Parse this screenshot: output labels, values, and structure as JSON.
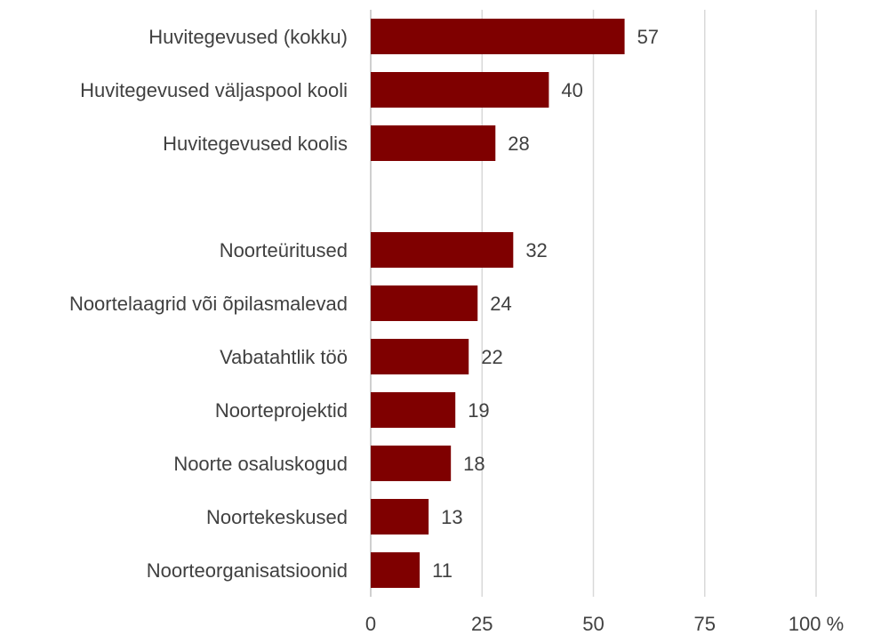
{
  "chart_data": {
    "type": "bar",
    "orientation": "horizontal",
    "categories": [
      "Huvitegevused (kokku)",
      "Huvitegevused väljaspool kooli",
      "Huvitegevused koolis",
      null,
      "Noorteüritused",
      "Noortelaagrid või õpilasmalevad",
      "Vabatahtlik töö",
      "Noorteprojektid",
      "Noorte osaluskogud",
      "Noortekeskused",
      "Noorteorganisatsioonid"
    ],
    "values": [
      57,
      40,
      28,
      null,
      32,
      24,
      22,
      19,
      18,
      13,
      11
    ],
    "color": "#7f0000",
    "xlim": [
      0,
      100
    ],
    "xticks": [
      0,
      25,
      50,
      75,
      {
        "value": 100,
        "label": "100 %"
      }
    ],
    "grid": true
  }
}
